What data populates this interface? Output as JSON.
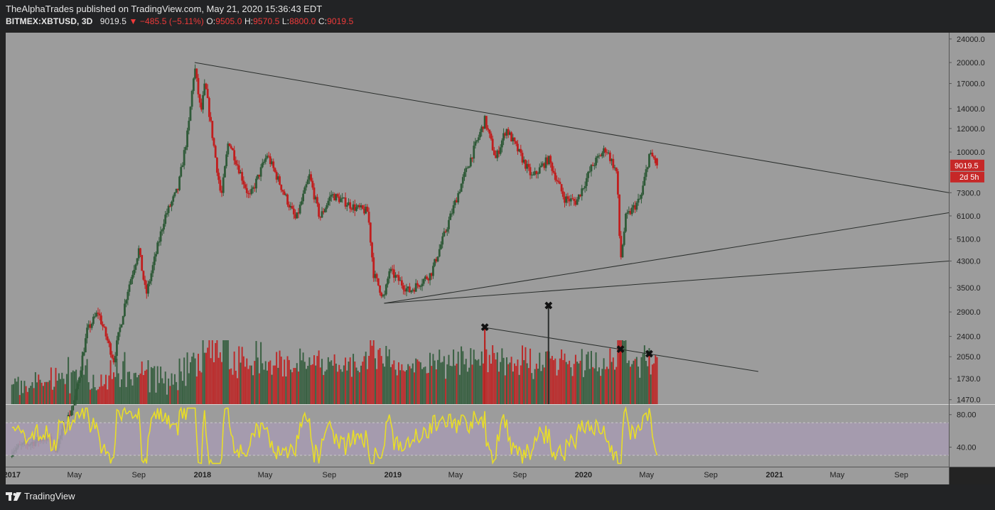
{
  "header": {
    "title": "TheAlphaTrades published on TradingView.com, May 21, 2020 15:36:43 EDT",
    "symbol": "BITMEX:XBTUSD, 3D",
    "last": "9019.5",
    "change": "−485.5 (−5.11%)",
    "open_label": "O:",
    "open": "9505.0",
    "high_label": "H:",
    "high": "9570.5",
    "low_label": "L:",
    "low": "8800.0",
    "close_label": "C:",
    "close": "9019.5"
  },
  "footer": {
    "brand": "TradingView"
  },
  "colors": {
    "background": "#9c9c9c",
    "up": "#2f5a38",
    "down": "#c01e1e",
    "rsi": "#e8dd28",
    "rsi_band": "#a79bb2",
    "trendline": "#2a2e2c"
  },
  "chart_data": {
    "type": "candlestick",
    "symbol": "BITMEX:XBTUSD",
    "timeframe": "3D",
    "price_axis": {
      "scale": "log",
      "ticks": [
        1470,
        1730,
        2050,
        2400,
        2900,
        3500,
        4300,
        5100,
        6100,
        7300,
        10000,
        12000,
        14000,
        17000,
        20000,
        24000
      ],
      "tick_labels": [
        "1470.0",
        "1730.0",
        "2050.0",
        "2400.0",
        "2900.0",
        "3500.0",
        "4300.0",
        "5100.0",
        "6100.0",
        "7300.0",
        "10000.0",
        "12000.0",
        "14000.0",
        "17000.0",
        "20000.0",
        "24000.0"
      ],
      "ylim": [
        1420,
        25200
      ]
    },
    "last_price_label": "9019.5",
    "countdown_label": "2d 5h",
    "x_axis": {
      "range": [
        "2016-12-20",
        "2021-12-01"
      ],
      "labels": [
        {
          "date": "2017-01-01",
          "text": "2017",
          "bold": true
        },
        {
          "date": "2017-05-01",
          "text": "May",
          "bold": false
        },
        {
          "date": "2017-09-01",
          "text": "Sep",
          "bold": false
        },
        {
          "date": "2018-01-01",
          "text": "2018",
          "bold": true
        },
        {
          "date": "2018-05-01",
          "text": "May",
          "bold": false
        },
        {
          "date": "2018-09-01",
          "text": "Sep",
          "bold": false
        },
        {
          "date": "2019-01-01",
          "text": "2019",
          "bold": true
        },
        {
          "date": "2019-05-01",
          "text": "May",
          "bold": false
        },
        {
          "date": "2019-09-01",
          "text": "Sep",
          "bold": false
        },
        {
          "date": "2020-01-01",
          "text": "2020",
          "bold": true
        },
        {
          "date": "2020-05-01",
          "text": "May",
          "bold": false
        },
        {
          "date": "2020-09-01",
          "text": "Sep",
          "bold": false
        },
        {
          "date": "2021-01-01",
          "text": "2021",
          "bold": true
        },
        {
          "date": "2021-05-01",
          "text": "May",
          "bold": false
        },
        {
          "date": "2021-09-01",
          "text": "Sep",
          "bold": false
        }
      ]
    },
    "price_path": [
      [
        "2017-01-01",
        1000
      ],
      [
        "2017-03-10",
        1100
      ],
      [
        "2017-03-25",
        1000
      ],
      [
        "2017-05-01",
        1450
      ],
      [
        "2017-05-25",
        2500
      ],
      [
        "2017-06-15",
        2900
      ],
      [
        "2017-07-15",
        2000
      ],
      [
        "2017-08-10",
        3400
      ],
      [
        "2017-09-01",
        4700
      ],
      [
        "2017-09-15",
        3300
      ],
      [
        "2017-10-20",
        6000
      ],
      [
        "2017-11-15",
        7500
      ],
      [
        "2017-12-05",
        12000
      ],
      [
        "2017-12-17",
        19500
      ],
      [
        "2017-12-29",
        13500
      ],
      [
        "2018-01-06",
        17000
      ],
      [
        "2018-02-06",
        7000
      ],
      [
        "2018-02-20",
        11000
      ],
      [
        "2018-04-01",
        7000
      ],
      [
        "2018-05-05",
        9800
      ],
      [
        "2018-06-29",
        5900
      ],
      [
        "2018-07-25",
        8300
      ],
      [
        "2018-08-14",
        6000
      ],
      [
        "2018-09-05",
        7200
      ],
      [
        "2018-10-20",
        6500
      ],
      [
        "2018-11-14",
        6300
      ],
      [
        "2018-11-25",
        3900
      ],
      [
        "2018-12-15",
        3200
      ],
      [
        "2018-12-25",
        4000
      ],
      [
        "2019-02-01",
        3400
      ],
      [
        "2019-03-15",
        3900
      ],
      [
        "2019-04-05",
        5000
      ],
      [
        "2019-05-14",
        8000
      ],
      [
        "2019-06-26",
        12800
      ],
      [
        "2019-07-17",
        9500
      ],
      [
        "2019-08-06",
        12000
      ],
      [
        "2019-09-25",
        8200
      ],
      [
        "2019-10-26",
        9500
      ],
      [
        "2019-11-25",
        7000
      ],
      [
        "2019-12-18",
        6800
      ],
      [
        "2020-01-18",
        9000
      ],
      [
        "2020-02-13",
        10300
      ],
      [
        "2020-03-05",
        8500
      ],
      [
        "2020-03-12",
        4300
      ],
      [
        "2020-03-22",
        6000
      ],
      [
        "2020-04-20",
        7000
      ],
      [
        "2020-05-06",
        9800
      ],
      [
        "2020-05-15",
        9500
      ],
      [
        "2020-05-21",
        9019.5
      ]
    ],
    "trendlines": [
      {
        "from": [
          "2017-12-17",
          20000
        ],
        "to": [
          "2021-12-01",
          7300
        ]
      },
      {
        "from": [
          "2018-12-15",
          3100
        ],
        "to": [
          "2021-12-01",
          6250
        ]
      },
      {
        "from": [
          "2018-12-15",
          3100
        ],
        "to": [
          "2021-12-01",
          4300
        ]
      }
    ],
    "volume": {
      "color_by_candle": true,
      "max_shown": "2019-06-26"
    },
    "volume_trendline": {
      "from": [
        "2019-06-26",
        1
      ],
      "to": [
        "2020-12-01",
        0.3
      ]
    },
    "volume_markers": [
      {
        "date": "2019-06-26",
        "symbol": "✖"
      },
      {
        "date": "2019-10-26",
        "symbol": "✖"
      },
      {
        "date": "2020-03-12",
        "symbol": "✖"
      },
      {
        "date": "2020-05-06",
        "symbol": "✖"
      }
    ],
    "rsi": {
      "tick_labels": [
        "80.00",
        "40.00"
      ],
      "ticks": [
        80,
        40
      ],
      "band": [
        30,
        70
      ],
      "ylim": [
        16,
        92
      ]
    }
  }
}
